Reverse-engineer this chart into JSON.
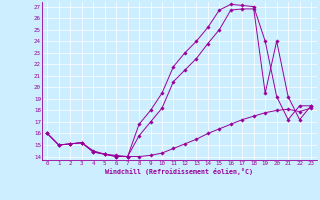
{
  "xlabel": "Windchill (Refroidissement éolien,°C)",
  "bg_color": "#cceeff",
  "line_color": "#990099",
  "grid_color": "#ffffff",
  "xlim": [
    -0.5,
    23.5
  ],
  "ylim": [
    13.7,
    27.4
  ],
  "xticks": [
    0,
    1,
    2,
    3,
    4,
    5,
    6,
    7,
    8,
    9,
    10,
    11,
    12,
    13,
    14,
    15,
    16,
    17,
    18,
    19,
    20,
    21,
    22,
    23
  ],
  "yticks": [
    14,
    15,
    16,
    17,
    18,
    19,
    20,
    21,
    22,
    23,
    24,
    25,
    26,
    27
  ],
  "series": [
    {
      "x": [
        0,
        1,
        2,
        3,
        4,
        5,
        6,
        7,
        8,
        9,
        10,
        11,
        12,
        13,
        14,
        15,
        16,
        17,
        18,
        19,
        20,
        21,
        22,
        23
      ],
      "y": [
        16.0,
        15.0,
        15.1,
        15.2,
        14.5,
        14.2,
        14.1,
        14.0,
        14.0,
        14.1,
        14.3,
        14.7,
        15.1,
        15.5,
        16.0,
        16.4,
        16.8,
        17.2,
        17.5,
        17.8,
        18.0,
        18.1,
        17.9,
        18.2
      ]
    },
    {
      "x": [
        0,
        1,
        2,
        3,
        4,
        5,
        6,
        7,
        8,
        9,
        10,
        11,
        12,
        13,
        14,
        15,
        16,
        17,
        18,
        19,
        20,
        21,
        22,
        23
      ],
      "y": [
        16.0,
        15.0,
        15.1,
        15.2,
        14.4,
        14.2,
        14.0,
        14.0,
        15.8,
        17.0,
        18.2,
        20.5,
        21.5,
        22.5,
        23.8,
        25.0,
        26.7,
        26.8,
        26.8,
        19.5,
        24.0,
        19.2,
        17.2,
        18.4
      ]
    },
    {
      "x": [
        0,
        1,
        2,
        3,
        4,
        5,
        6,
        7,
        8,
        9,
        10,
        11,
        12,
        13,
        14,
        15,
        16,
        17,
        18,
        19,
        20,
        21,
        22,
        23
      ],
      "y": [
        16.0,
        15.0,
        15.1,
        15.2,
        14.4,
        14.2,
        14.0,
        14.0,
        16.8,
        18.0,
        19.5,
        21.8,
        23.0,
        24.0,
        25.2,
        26.7,
        27.2,
        27.1,
        27.0,
        24.0,
        19.2,
        17.2,
        18.4,
        18.4
      ]
    }
  ]
}
